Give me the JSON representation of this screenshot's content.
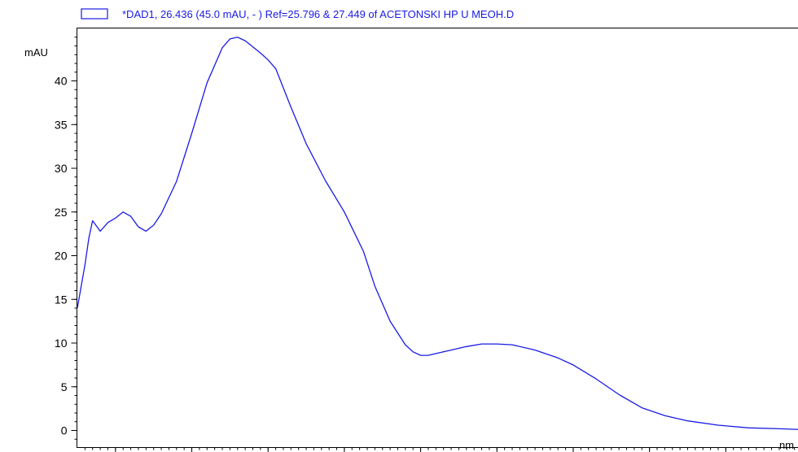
{
  "chart_data": {
    "type": "line",
    "title": "*DAD1, 26.436 (45.0 mAU, - ) Ref=25.796 & 27.449 of ACETONSKI HP U MEOH.D",
    "ylabel": "mAU",
    "xlabel": "nm",
    "xlim": [
      210,
      400
    ],
    "ylim": [
      -2,
      46
    ],
    "x_ticks": [
      220,
      240,
      260,
      280,
      300,
      320,
      340,
      360,
      380
    ],
    "y_ticks": [
      0,
      5,
      10,
      15,
      20,
      25,
      30,
      35,
      40
    ],
    "grid": false,
    "legend_position": "top",
    "line_color": "#1a1ae6",
    "series": [
      {
        "x": [
          210,
          212,
          213,
          214,
          216,
          218,
          220,
          222,
          224,
          226,
          228,
          230,
          232,
          236,
          240,
          244,
          248,
          250,
          252,
          254,
          256,
          258,
          260,
          262,
          266,
          270,
          275,
          280,
          285,
          288,
          292,
          296,
          298,
          300,
          302,
          304,
          308,
          312,
          316,
          320,
          324,
          330,
          336,
          340,
          346,
          352,
          358,
          364,
          370,
          378,
          386,
          394,
          400
        ],
        "y": [
          14.0,
          19.0,
          22.0,
          24.0,
          22.8,
          23.8,
          24.3,
          25.0,
          24.5,
          23.3,
          22.8,
          23.5,
          24.8,
          28.5,
          34.0,
          39.8,
          43.8,
          44.8,
          45.0,
          44.6,
          43.9,
          43.2,
          42.4,
          41.4,
          37.0,
          32.8,
          28.6,
          25.0,
          20.5,
          16.5,
          12.5,
          9.8,
          9.0,
          8.6,
          8.6,
          8.8,
          9.2,
          9.6,
          9.9,
          9.9,
          9.8,
          9.2,
          8.3,
          7.5,
          5.9,
          4.1,
          2.6,
          1.7,
          1.1,
          0.6,
          0.3,
          0.2,
          0.1
        ]
      }
    ]
  }
}
